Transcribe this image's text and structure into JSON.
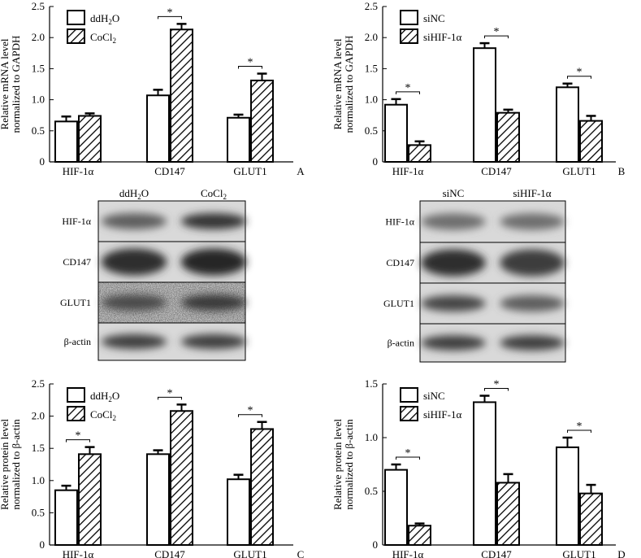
{
  "chart_data": [
    {
      "panel": "A",
      "type": "bar",
      "ylabel_lines": [
        "Relative mRNA level",
        "normalized to GAPDH"
      ],
      "ylim": [
        0,
        2.5
      ],
      "yticks": [
        "0",
        "0.5",
        "1.0",
        "1.5",
        "2.0",
        "2.5"
      ],
      "categories": [
        "HIF-1α",
        "CD147",
        "GLUT1"
      ],
      "series": [
        {
          "name": "ddH2O",
          "legend_main": "ddH",
          "legend_sub": "2",
          "legend_tail": "O",
          "pattern": "open",
          "values": [
            0.65,
            1.07,
            0.71
          ],
          "errors": [
            0.08,
            0.09,
            0.05
          ]
        },
        {
          "name": "CoCl2",
          "legend_main": "CoCl",
          "legend_sub": "2",
          "legend_tail": "",
          "pattern": "hatch",
          "values": [
            0.74,
            2.13,
            1.31
          ],
          "errors": [
            0.04,
            0.09,
            0.11
          ]
        }
      ],
      "significance": [
        "",
        "*",
        "*"
      ],
      "legend": "top-left",
      "grid": false
    },
    {
      "panel": "B",
      "type": "bar",
      "ylabel_lines": [
        "Relative mRNA level",
        "normalized to GAPDH"
      ],
      "ylim": [
        0,
        2.5
      ],
      "yticks": [
        "0",
        "0.5",
        "1.0",
        "1.5",
        "2.0",
        "2.5"
      ],
      "categories": [
        "HIF-1α",
        "CD147",
        "GLUT1"
      ],
      "series": [
        {
          "name": "siNC",
          "legend_main": "siNC",
          "legend_sub": "",
          "legend_tail": "",
          "pattern": "open",
          "values": [
            0.92,
            1.83,
            1.2
          ],
          "errors": [
            0.09,
            0.08,
            0.06
          ]
        },
        {
          "name": "siHIF-1α",
          "legend_main": "siHIF-1α",
          "legend_sub": "",
          "legend_tail": "",
          "pattern": "hatch",
          "values": [
            0.27,
            0.79,
            0.66
          ],
          "errors": [
            0.06,
            0.05,
            0.08
          ]
        }
      ],
      "significance": [
        "*",
        "*",
        "*"
      ],
      "legend": "top-left",
      "grid": false
    },
    {
      "panel": "C",
      "type": "bar",
      "ylabel_lines": [
        "Relative protein level",
        "normalized to β-actin"
      ],
      "ylim": [
        0,
        2.5
      ],
      "yticks": [
        "0",
        "0.5",
        "1.0",
        "1.5",
        "2.0",
        "2.5"
      ],
      "categories": [
        "HIF-1α",
        "CD147",
        "GLUT1"
      ],
      "series": [
        {
          "name": "ddH2O",
          "legend_main": "ddH",
          "legend_sub": "2",
          "legend_tail": "O",
          "pattern": "open",
          "values": [
            0.85,
            1.41,
            1.02
          ],
          "errors": [
            0.07,
            0.06,
            0.07
          ]
        },
        {
          "name": "CoCl2",
          "legend_main": "CoCl",
          "legend_sub": "2",
          "legend_tail": "",
          "pattern": "hatch",
          "values": [
            1.41,
            2.08,
            1.8
          ],
          "errors": [
            0.11,
            0.1,
            0.11
          ]
        }
      ],
      "significance": [
        "*",
        "*",
        "*"
      ],
      "legend": "top-left",
      "grid": false
    },
    {
      "panel": "D",
      "type": "bar",
      "ylabel_lines": [
        "Relative protein level",
        "normalized to β-actin"
      ],
      "ylim": [
        0,
        1.5
      ],
      "yticks": [
        "0",
        "0.5",
        "1.0",
        "1.5"
      ],
      "categories": [
        "HIF-1α",
        "CD147",
        "GLUT1"
      ],
      "series": [
        {
          "name": "siNC",
          "legend_main": "siNC",
          "legend_sub": "",
          "legend_tail": "",
          "pattern": "open",
          "values": [
            0.7,
            1.33,
            0.91
          ],
          "errors": [
            0.05,
            0.06,
            0.09
          ]
        },
        {
          "name": "siHIF-1α",
          "legend_main": "siHIF-1α",
          "legend_sub": "",
          "legend_tail": "",
          "pattern": "hatch",
          "values": [
            0.18,
            0.58,
            0.48
          ],
          "errors": [
            0.02,
            0.08,
            0.08
          ]
        }
      ],
      "significance": [
        "*",
        "*",
        "*"
      ],
      "legend": "top-left",
      "grid": false
    }
  ],
  "blots": [
    {
      "lanes": [
        {
          "main": "ddH",
          "sub": "2",
          "tail": "O"
        },
        {
          "main": "CoCl",
          "sub": "2",
          "tail": ""
        }
      ],
      "rows": [
        "HIF-1α",
        "CD147",
        "GLUT1",
        "β-actin"
      ]
    },
    {
      "lanes": [
        {
          "main": "siNC",
          "sub": "",
          "tail": ""
        },
        {
          "main": "siHIF-1α",
          "sub": "",
          "tail": ""
        }
      ],
      "rows": [
        "HIF-1α",
        "CD147",
        "GLUT1",
        "β-actin"
      ]
    }
  ]
}
